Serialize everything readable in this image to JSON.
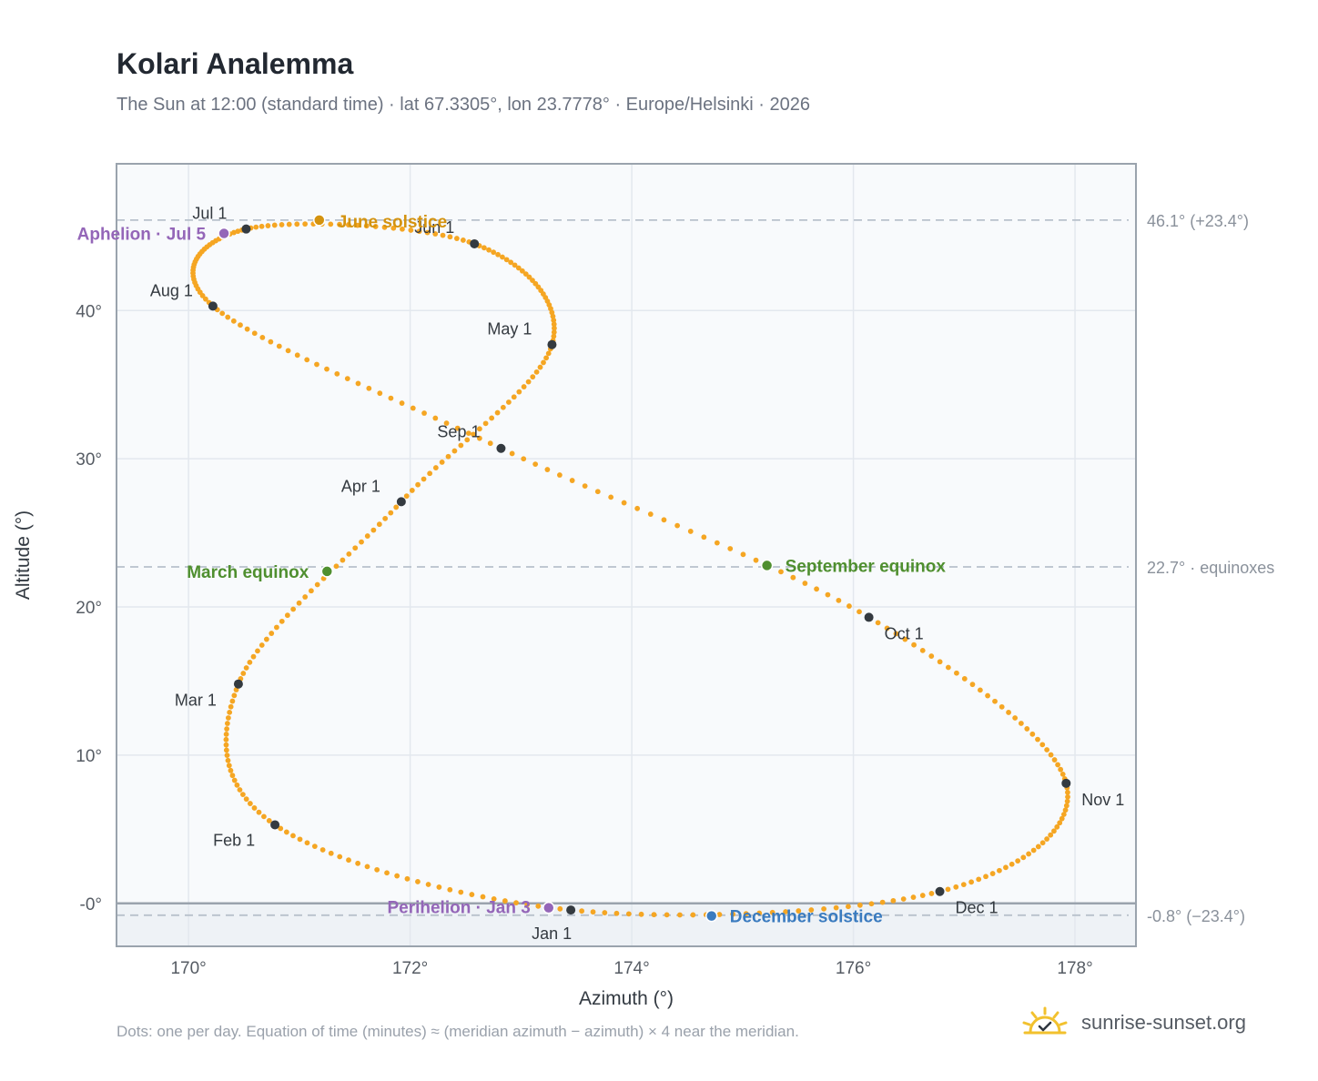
{
  "header": {
    "title": "Kolari Analemma",
    "subtitle": "The Sun at 12:00 (standard time) · lat 67.3305°, lon 23.7778° · Europe/Helsinki · 2026"
  },
  "footer": {
    "note": "Dots: one per day. Equation of time (minutes) ≈ (meridian azimuth − azimuth) × 4 near the meridian.",
    "brand": "sunrise-sunset.org"
  },
  "colors": {
    "path": "#f5a623",
    "month_marker": "#343a40",
    "solstice_june": "#d4930f",
    "solstice_december": "#3a7bbf",
    "equinox": "#4f8f2f",
    "apsis": "#9466b8",
    "brand_sun": "#f2c12e"
  },
  "chart_data": {
    "type": "scatter",
    "xlabel": "Azimuth (°)",
    "ylabel": "Altitude (°)",
    "xlim": [
      169.35,
      178.55
    ],
    "ylim": [
      -2.9,
      49.9
    ],
    "x_ticks": [
      "170°",
      "172°",
      "174°",
      "176°",
      "178°"
    ],
    "y_ticks": [
      "-0°",
      "10°",
      "20°",
      "30°",
      "40°"
    ],
    "horizon": 0,
    "reference_lines": [
      {
        "value": 46.1,
        "label": "46.1° (+23.4°)"
      },
      {
        "value": 22.7,
        "label": "22.7° · equinoxes"
      },
      {
        "value": -0.8,
        "label": "-0.8° (−23.4°)"
      }
    ],
    "month_markers": [
      {
        "label": "Jan 1",
        "azimuth": 173.45,
        "altitude": -0.45
      },
      {
        "label": "Feb 1",
        "azimuth": 170.78,
        "altitude": 5.3
      },
      {
        "label": "Mar 1",
        "azimuth": 170.45,
        "altitude": 14.8
      },
      {
        "label": "Apr 1",
        "azimuth": 171.92,
        "altitude": 27.1
      },
      {
        "label": "May 1",
        "azimuth": 173.28,
        "altitude": 37.7
      },
      {
        "label": "Jun 1",
        "azimuth": 172.58,
        "altitude": 44.5
      },
      {
        "label": "Jul 1",
        "azimuth": 170.52,
        "altitude": 45.5
      },
      {
        "label": "Aug 1",
        "azimuth": 170.22,
        "altitude": 40.3
      },
      {
        "label": "Sep 1",
        "azimuth": 172.82,
        "altitude": 30.7
      },
      {
        "label": "Oct 1",
        "azimuth": 176.14,
        "altitude": 19.3
      },
      {
        "label": "Nov 1",
        "azimuth": 177.92,
        "altitude": 8.1
      },
      {
        "label": "Dec 1",
        "azimuth": 176.78,
        "altitude": 0.8
      }
    ],
    "events": [
      {
        "label": "June solstice",
        "azimuth": 171.18,
        "altitude": 46.1,
        "kind": "solstice_june"
      },
      {
        "label": "December solstice",
        "azimuth": 174.72,
        "altitude": -0.85,
        "kind": "solstice_december"
      },
      {
        "label": "March equinox",
        "azimuth": 171.25,
        "altitude": 22.4,
        "kind": "equinox"
      },
      {
        "label": "September equinox",
        "azimuth": 175.22,
        "altitude": 22.8,
        "kind": "equinox"
      },
      {
        "label": "Aphelion · Jul 5",
        "azimuth": 170.32,
        "altitude": 45.2,
        "kind": "apsis"
      },
      {
        "label": "Perihelion · Jan 3",
        "azimuth": 173.25,
        "altitude": -0.3,
        "kind": "apsis"
      }
    ]
  }
}
